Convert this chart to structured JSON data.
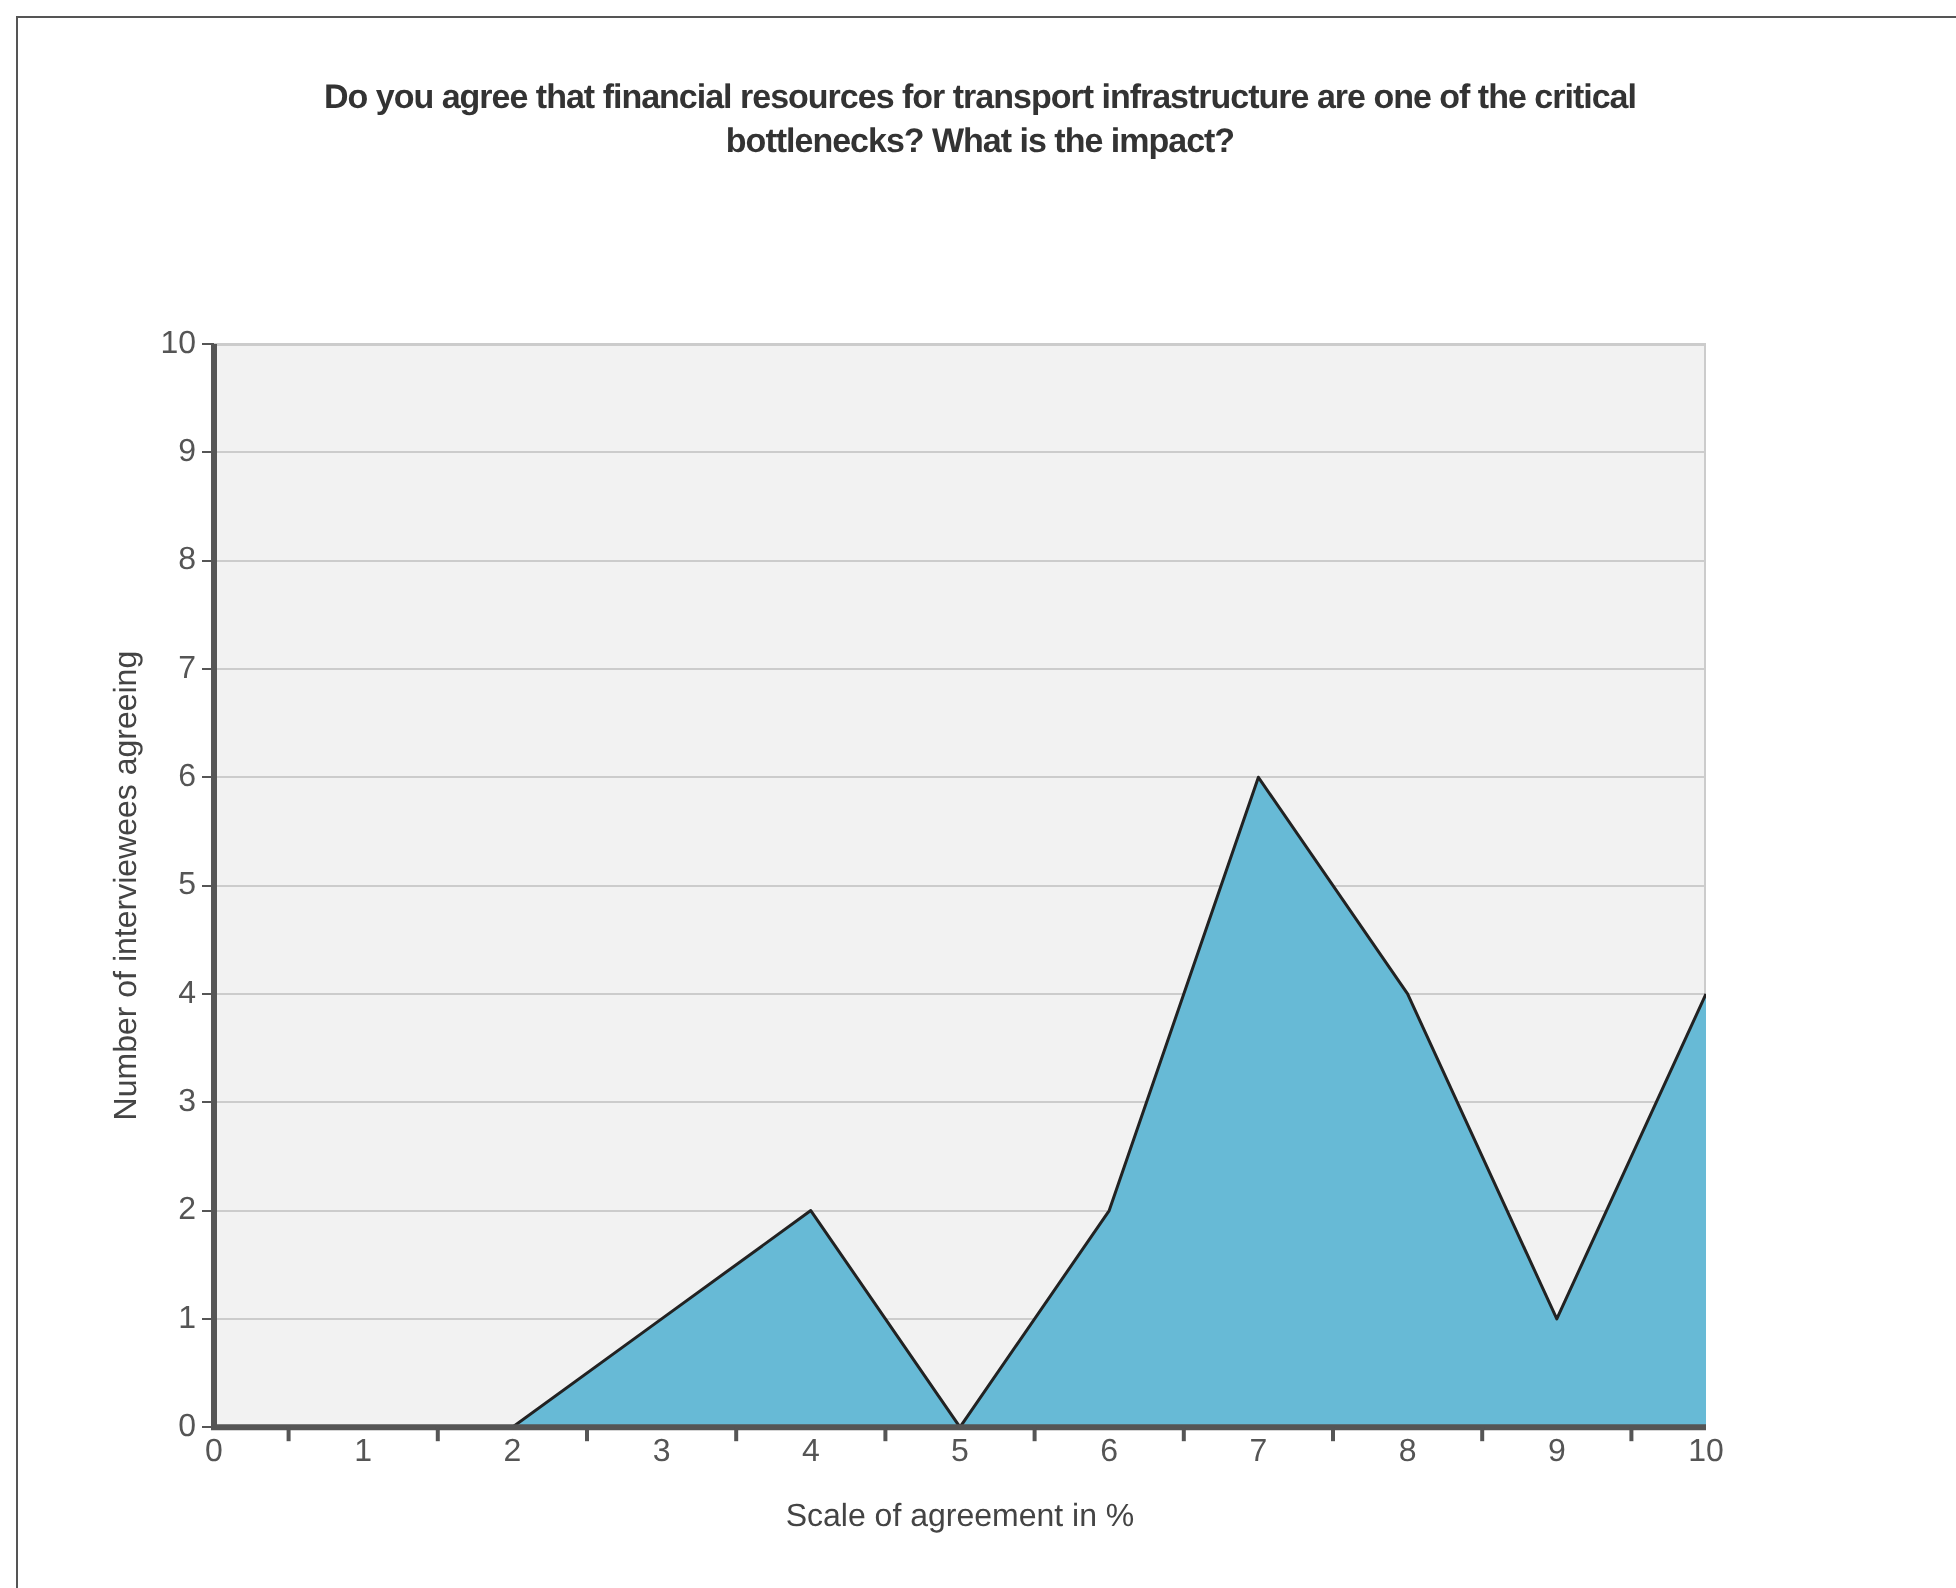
{
  "chart_data": {
    "type": "area",
    "title": "Do you agree that financial resources for transport infrastructure are one of the critical bottlenecks? What is the impact?",
    "xlabel": "Scale of agreement in %",
    "ylabel": "Number of interviewees agreeing",
    "x": [
      0,
      1,
      2,
      3,
      4,
      5,
      6,
      7,
      8,
      9,
      10
    ],
    "series": [
      {
        "color": "#67bad6",
        "values": [
          0,
          0,
          0,
          1,
          2,
          0,
          2,
          6,
          4,
          1,
          4
        ]
      }
    ],
    "xlim": [
      0,
      10
    ],
    "xticks": [
      0,
      1,
      2,
      3,
      4,
      5,
      6,
      7,
      8,
      9,
      10
    ],
    "ylim": [
      0,
      10
    ],
    "yticks": [
      0,
      1,
      2,
      3,
      4,
      5,
      6,
      7,
      8,
      9,
      10
    ],
    "grid": "y",
    "legend": false,
    "marker": "none",
    "line_style": "solid"
  }
}
